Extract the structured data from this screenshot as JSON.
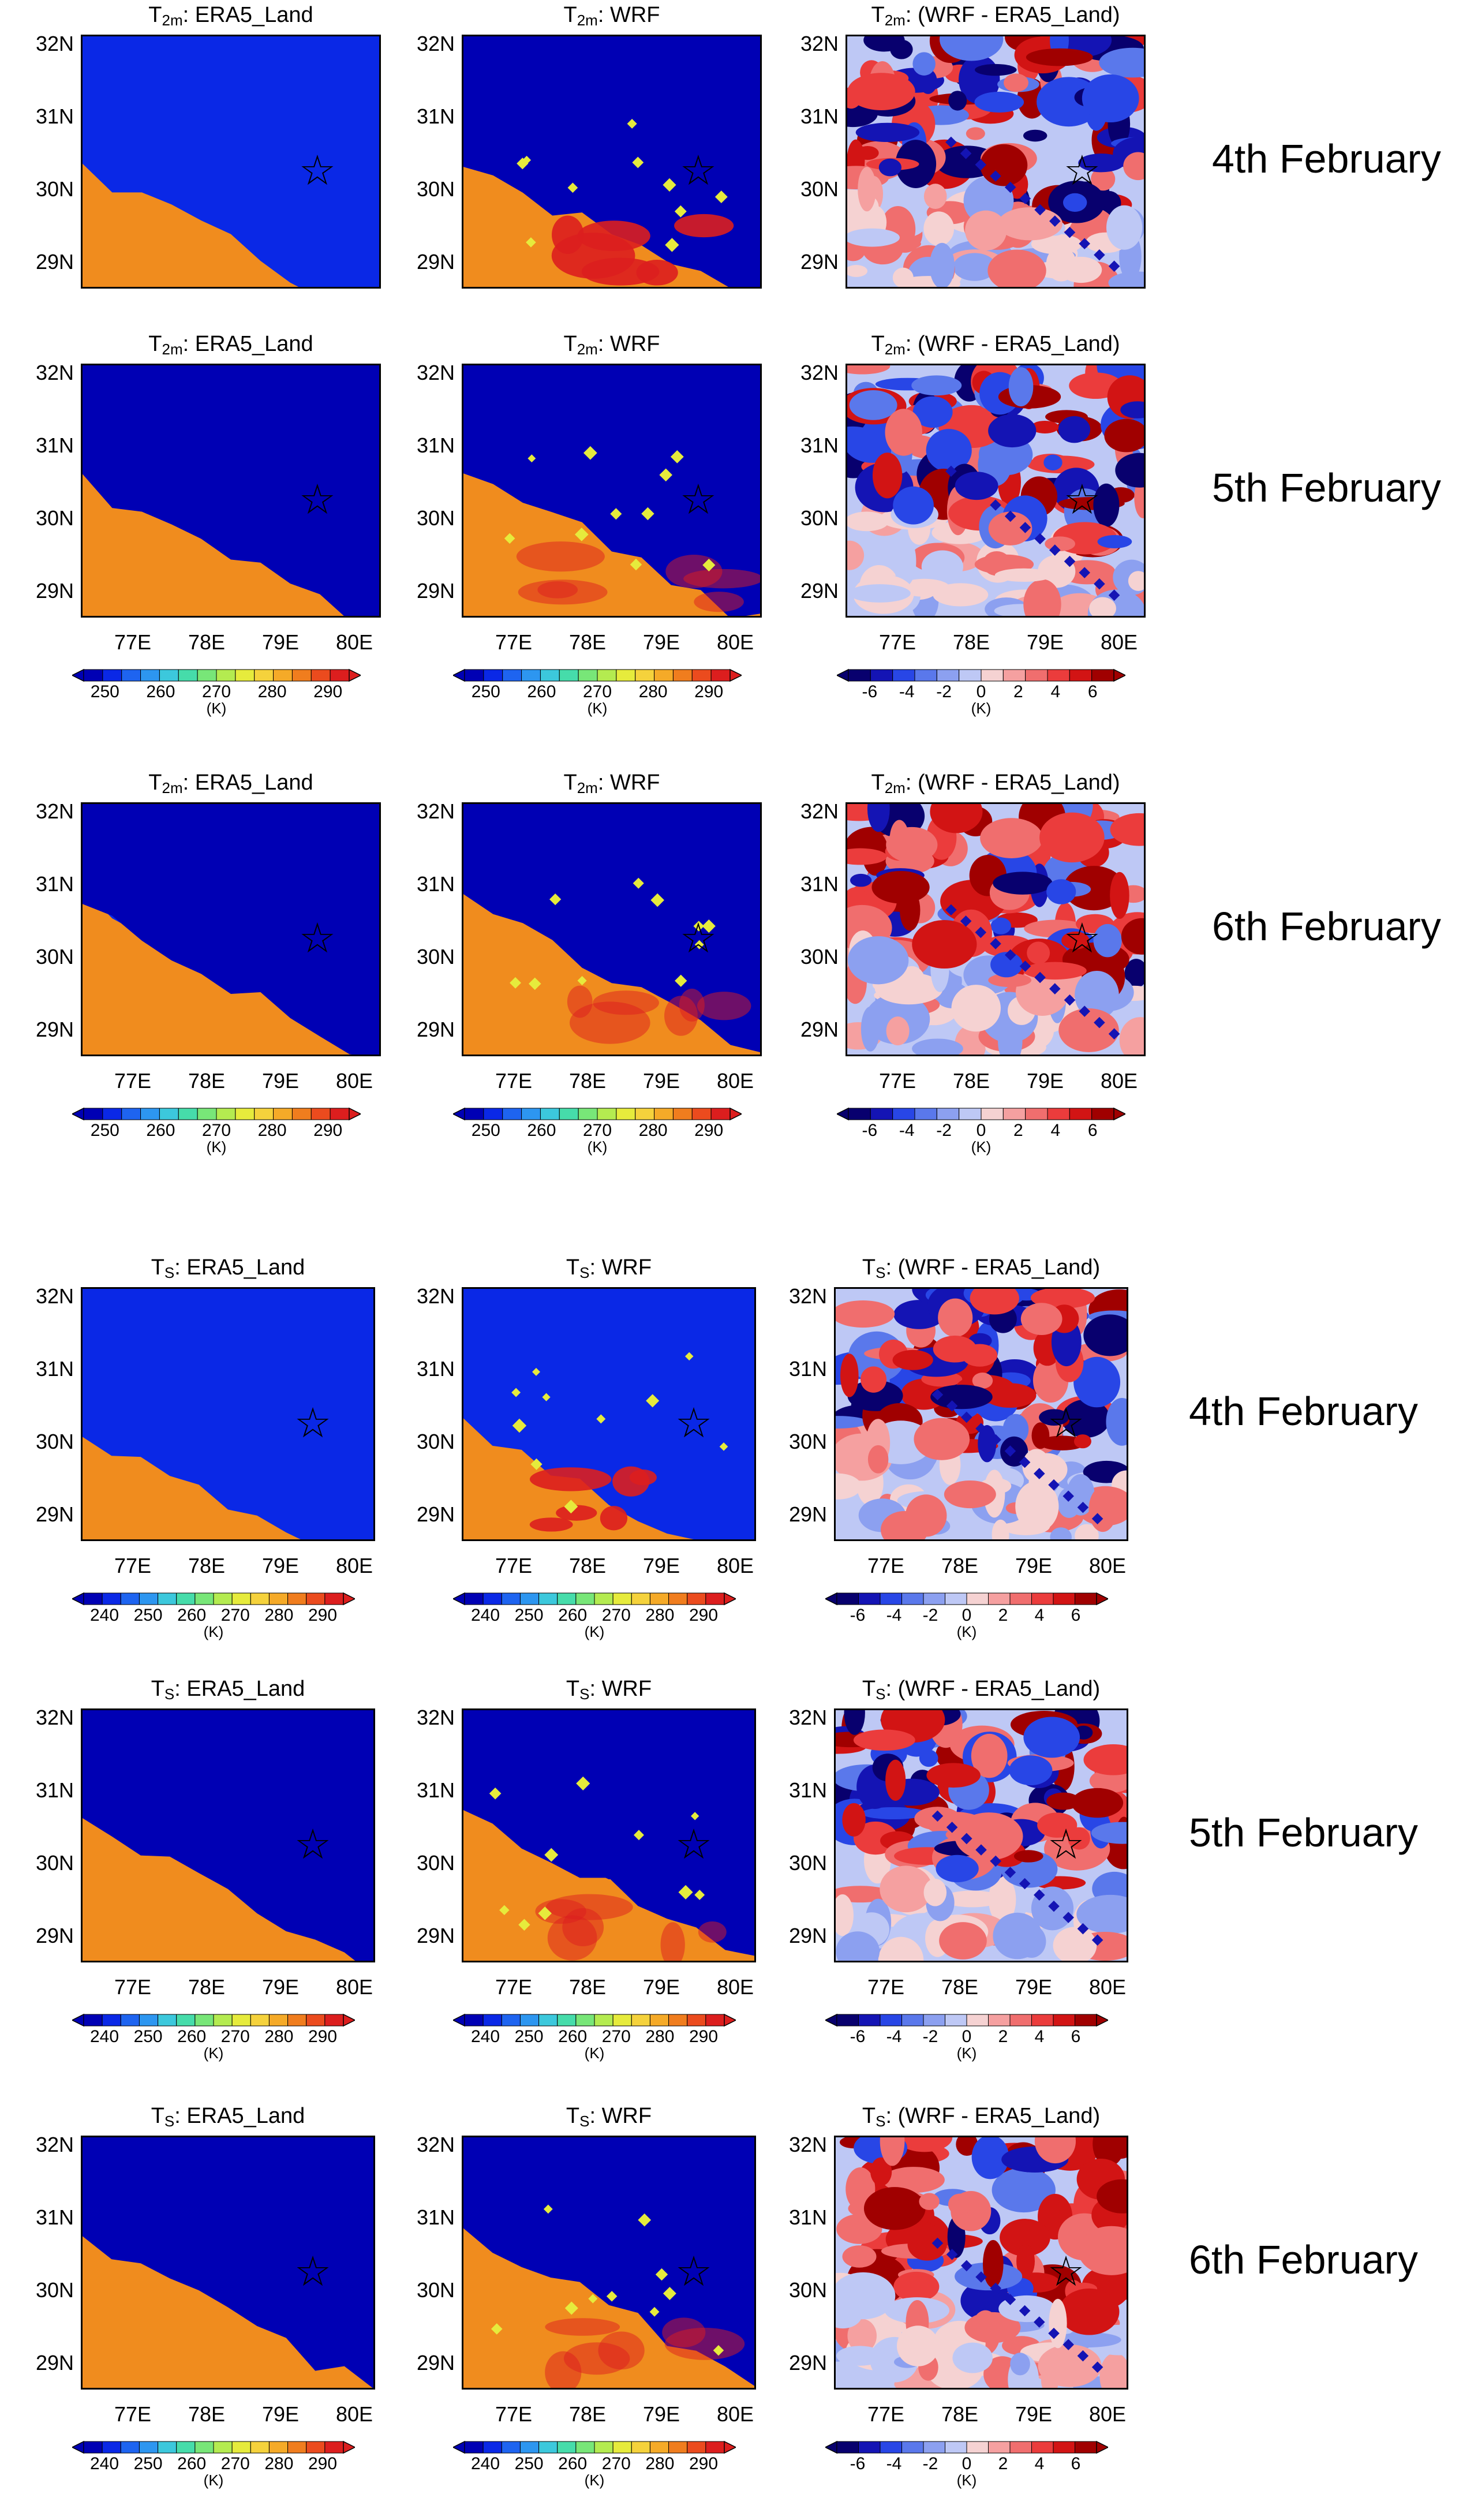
{
  "figure": {
    "rows": [
      {
        "day": "4th February",
        "panels": [
          {
            "var": "T",
            "sub": "2m",
            "label": ": ERA5_Land",
            "kind": "abs"
          },
          {
            "var": "T",
            "sub": "2m",
            "label": ": WRF",
            "kind": "abs"
          },
          {
            "var": "T",
            "sub": "2m",
            "label": ": (WRF - ERA5_Land)",
            "kind": "diff"
          }
        ]
      },
      {
        "day": "5th February",
        "panels": [
          {
            "var": "T",
            "sub": "2m",
            "label": ": ERA5_Land",
            "kind": "abs"
          },
          {
            "var": "T",
            "sub": "2m",
            "label": ": WRF",
            "kind": "abs"
          },
          {
            "var": "T",
            "sub": "2m",
            "label": ": (WRF - ERA5_Land)",
            "kind": "diff"
          }
        ]
      },
      {
        "day": "6th February",
        "panels": [
          {
            "var": "T",
            "sub": "2m",
            "label": ": ERA5_Land",
            "kind": "abs"
          },
          {
            "var": "T",
            "sub": "2m",
            "label": ": WRF",
            "kind": "abs"
          },
          {
            "var": "T",
            "sub": "2m",
            "label": ": (WRF - ERA5_Land)",
            "kind": "diff"
          }
        ]
      },
      {
        "day": "4th February",
        "panels": [
          {
            "var": "T",
            "sub": "S",
            "label": ": ERA5_Land",
            "kind": "abs"
          },
          {
            "var": "T",
            "sub": "S",
            "label": ": WRF",
            "kind": "abs"
          },
          {
            "var": "T",
            "sub": "S",
            "label": ": (WRF - ERA5_Land)",
            "kind": "diff"
          }
        ]
      },
      {
        "day": "5th February",
        "panels": [
          {
            "var": "T",
            "sub": "S",
            "label": ": ERA5_Land",
            "kind": "abs"
          },
          {
            "var": "T",
            "sub": "S",
            "label": ": WRF",
            "kind": "abs"
          },
          {
            "var": "T",
            "sub": "S",
            "label": ": (WRF - ERA5_Land)",
            "kind": "diff"
          }
        ]
      },
      {
        "day": "6th February",
        "panels": [
          {
            "var": "T",
            "sub": "S",
            "label": ": ERA5_Land",
            "kind": "abs"
          },
          {
            "var": "T",
            "sub": "S",
            "label": ": WRF",
            "kind": "abs"
          },
          {
            "var": "T",
            "sub": "S",
            "label": ": (WRF - ERA5_Land)",
            "kind": "diff"
          }
        ]
      }
    ],
    "lat_ticks": [
      "32N",
      "31N",
      "30N",
      "29N"
    ],
    "lon_ticks": [
      "77E",
      "78E",
      "79E",
      "80E"
    ],
    "t2m_scale": {
      "ticks": [
        "250",
        "260",
        "270",
        "280",
        "290"
      ],
      "unit": "(K)"
    },
    "ts_scale": {
      "ticks": [
        "240",
        "250",
        "260",
        "270",
        "280",
        "290"
      ],
      "unit": "(K)"
    },
    "diff_scale": {
      "ticks": [
        "-6",
        "-4",
        "-2",
        "0",
        "2",
        "4",
        "6"
      ],
      "unit": "(K)"
    },
    "colors": {
      "abs": [
        "#0000b4",
        "#0a28e6",
        "#1e64f0",
        "#2d96f0",
        "#3cc8dc",
        "#46dcaa",
        "#78e678",
        "#b4eb50",
        "#e6eb3c",
        "#f5d23c",
        "#f5aa28",
        "#f07d1e",
        "#eb4b1e",
        "#dc1e1e"
      ],
      "diff": [
        "#08006e",
        "#1414b4",
        "#2846e6",
        "#5a78eb",
        "#8ca0f0",
        "#bec8f5",
        "#f5d2d2",
        "#f5a0a0",
        "#f06e6e",
        "#eb3c3c",
        "#d21414",
        "#a00000"
      ],
      "land_orange": "#f08c1e"
    },
    "station_marker": "☆"
  }
}
